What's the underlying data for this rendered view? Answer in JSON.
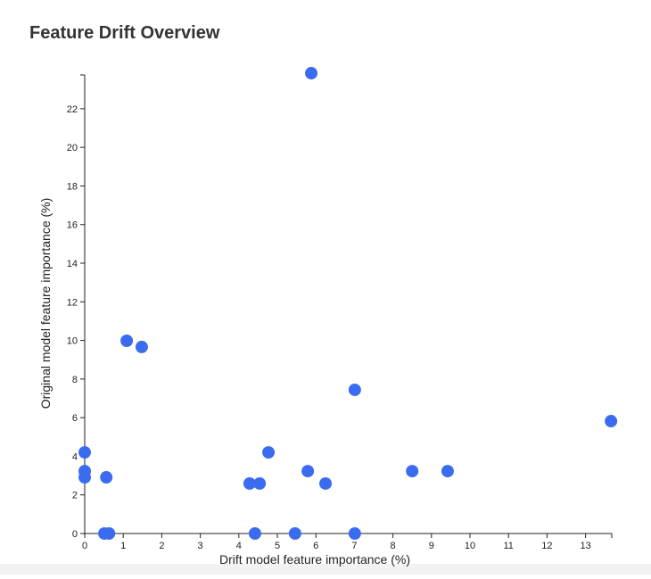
{
  "chart_data": {
    "type": "scatter",
    "title": "Feature Drift Overview",
    "x_label": "Drift model feature importance (%)",
    "y_label": "Original model feature importance (%)",
    "color": "#3b6cf0",
    "series": [
      {
        "x": [
          5.88,
          1.09,
          1.48,
          7.01,
          13.66,
          0,
          0,
          0,
          0.56,
          4.77,
          5.79,
          8.5,
          9.42,
          4.28,
          4.54,
          6.25,
          0.51,
          0.63,
          4.42,
          5.46,
          7.01
        ],
        "values": [
          23.84,
          9.98,
          9.66,
          7.44,
          5.82,
          4.2,
          3.23,
          2.91,
          2.91,
          4.2,
          3.23,
          3.23,
          3.23,
          2.59,
          2.59,
          2.59,
          0,
          0,
          0,
          0,
          0
        ]
      }
    ],
    "xlim": [
      0,
      13.68
    ],
    "ylim": [
      0,
      23.75
    ],
    "xticks": [
      0,
      1,
      2,
      3,
      4,
      5,
      6,
      7,
      8,
      9,
      10,
      11,
      12,
      13
    ],
    "yticks": [
      0,
      2,
      4,
      6,
      8,
      10,
      12,
      14,
      16,
      18,
      20,
      22
    ]
  }
}
